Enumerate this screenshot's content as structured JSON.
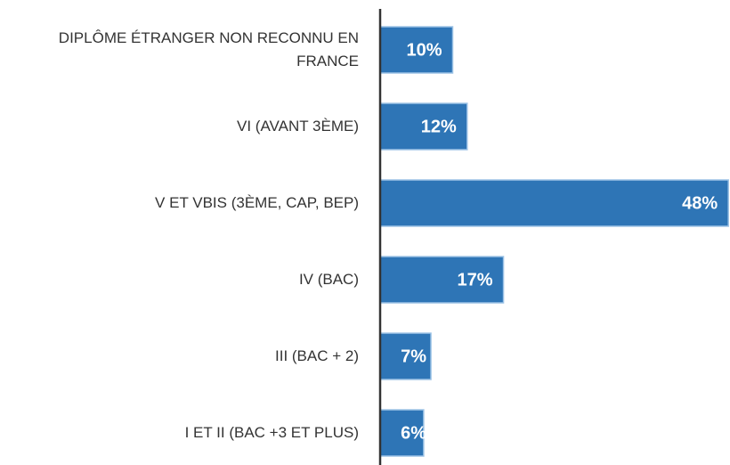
{
  "chart_data": {
    "type": "bar",
    "orientation": "horizontal",
    "categories": [
      "DIPLÔME ÉTRANGER NON RECONNU EN FRANCE",
      "VI (AVANT 3ÈME)",
      "V ET VBIS (3ÈME, CAP, BEP)",
      "IV (BAC)",
      "III (BAC + 2)",
      "I ET II (BAC +3 ET PLUS)"
    ],
    "values": [
      10,
      12,
      48,
      17,
      7,
      6
    ],
    "value_labels": [
      "10%",
      "12%",
      "48%",
      "17%",
      "7%",
      "6%"
    ],
    "color": "#2e75b6"
  }
}
